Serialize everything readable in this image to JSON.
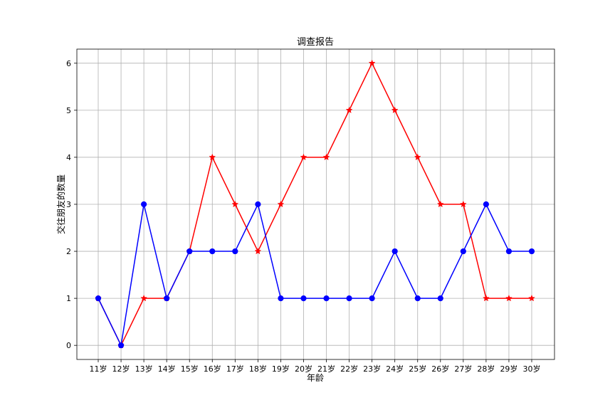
{
  "chart_data": {
    "type": "line",
    "title": "调查报告",
    "xlabel": "年龄",
    "ylabel": "交往朋友的数量",
    "categories": [
      "11岁",
      "12岁",
      "13岁",
      "14岁",
      "15岁",
      "16岁",
      "17岁",
      "18岁",
      "19岁",
      "20岁",
      "21岁",
      "22岁",
      "23岁",
      "24岁",
      "25岁",
      "26岁",
      "27岁",
      "28岁",
      "29岁",
      "30岁"
    ],
    "yticks": [
      0,
      1,
      2,
      3,
      4,
      5,
      6
    ],
    "ylim": [
      -0.3,
      6.3
    ],
    "grid": true,
    "series": [
      {
        "color": "#ff0000",
        "marker": "star",
        "values": [
          1,
          0,
          1,
          1,
          2,
          4,
          3,
          2,
          3,
          4,
          4,
          5,
          6,
          5,
          4,
          3,
          3,
          1,
          1,
          1
        ]
      },
      {
        "color": "#0000ff",
        "marker": "circle",
        "values": [
          1,
          0,
          3,
          1,
          2,
          2,
          2,
          3,
          1,
          1,
          1,
          1,
          1,
          2,
          1,
          1,
          2,
          3,
          2,
          2
        ]
      }
    ]
  }
}
